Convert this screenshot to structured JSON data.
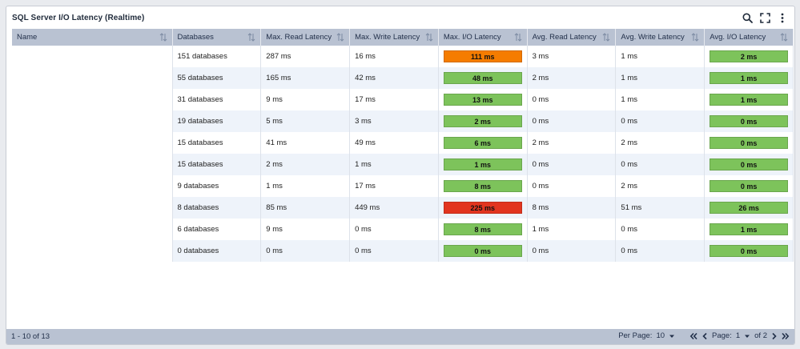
{
  "widget": {
    "title": "SQL Server I/O Latency (Realtime)"
  },
  "columns": [
    "Name",
    "Databases",
    "Max. Read Latency",
    "Max. Write Latency",
    "Max. I/O Latency",
    "Avg. Read Latency",
    "Avg. Write Latency",
    "Avg. I/O Latency"
  ],
  "rows": [
    {
      "name": "",
      "databases": "151 databases",
      "max_read": "287 ms",
      "max_write": "16 ms",
      "max_io": "111 ms",
      "max_io_status": "orange",
      "avg_read": "3 ms",
      "avg_write": "1 ms",
      "avg_io": "2 ms",
      "avg_io_status": "green"
    },
    {
      "name": "",
      "databases": "55 databases",
      "max_read": "165 ms",
      "max_write": "42 ms",
      "max_io": "48 ms",
      "max_io_status": "green",
      "avg_read": "2 ms",
      "avg_write": "1 ms",
      "avg_io": "1 ms",
      "avg_io_status": "green"
    },
    {
      "name": "",
      "databases": "31 databases",
      "max_read": "9 ms",
      "max_write": "17 ms",
      "max_io": "13 ms",
      "max_io_status": "green",
      "avg_read": "0 ms",
      "avg_write": "1 ms",
      "avg_io": "1 ms",
      "avg_io_status": "green"
    },
    {
      "name": "",
      "databases": "19 databases",
      "max_read": "5 ms",
      "max_write": "3 ms",
      "max_io": "2 ms",
      "max_io_status": "green",
      "avg_read": "0 ms",
      "avg_write": "0 ms",
      "avg_io": "0 ms",
      "avg_io_status": "green"
    },
    {
      "name": "",
      "databases": "15 databases",
      "max_read": "41 ms",
      "max_write": "49 ms",
      "max_io": "6 ms",
      "max_io_status": "green",
      "avg_read": "2 ms",
      "avg_write": "2 ms",
      "avg_io": "0 ms",
      "avg_io_status": "green"
    },
    {
      "name": "",
      "databases": "15 databases",
      "max_read": "2 ms",
      "max_write": "1 ms",
      "max_io": "1 ms",
      "max_io_status": "green",
      "avg_read": "0 ms",
      "avg_write": "0 ms",
      "avg_io": "0 ms",
      "avg_io_status": "green"
    },
    {
      "name": "",
      "databases": "9 databases",
      "max_read": "1 ms",
      "max_write": "17 ms",
      "max_io": "8 ms",
      "max_io_status": "green",
      "avg_read": "0 ms",
      "avg_write": "2 ms",
      "avg_io": "0 ms",
      "avg_io_status": "green"
    },
    {
      "name": "",
      "databases": "8 databases",
      "max_read": "85 ms",
      "max_write": "449 ms",
      "max_io": "225 ms",
      "max_io_status": "red",
      "avg_read": "8 ms",
      "avg_write": "51 ms",
      "avg_io": "26 ms",
      "avg_io_status": "green"
    },
    {
      "name": "",
      "databases": "6 databases",
      "max_read": "9 ms",
      "max_write": "0 ms",
      "max_io": "8 ms",
      "max_io_status": "green",
      "avg_read": "1 ms",
      "avg_write": "0 ms",
      "avg_io": "1 ms",
      "avg_io_status": "green"
    },
    {
      "name": "",
      "databases": "0 databases",
      "max_read": "0 ms",
      "max_write": "0 ms",
      "max_io": "0 ms",
      "max_io_status": "green",
      "avg_read": "0 ms",
      "avg_write": "0 ms",
      "avg_io": "0 ms",
      "avg_io_status": "green"
    }
  ],
  "status_colors": {
    "green": "#7dc35b",
    "orange": "#f57c00",
    "red": "#e2351f"
  },
  "footer": {
    "range": "1 - 10 of 13",
    "per_page_label": "Per Page:",
    "per_page_value": "10",
    "page_label": "Page:",
    "page_value": "1",
    "page_total": "of 2"
  },
  "icons": [
    "search-icon",
    "expand-icon",
    "more-vertical-icon",
    "sort-icon",
    "caret-down-icon",
    "first-page-icon",
    "prev-page-icon",
    "next-page-icon",
    "last-page-icon"
  ]
}
